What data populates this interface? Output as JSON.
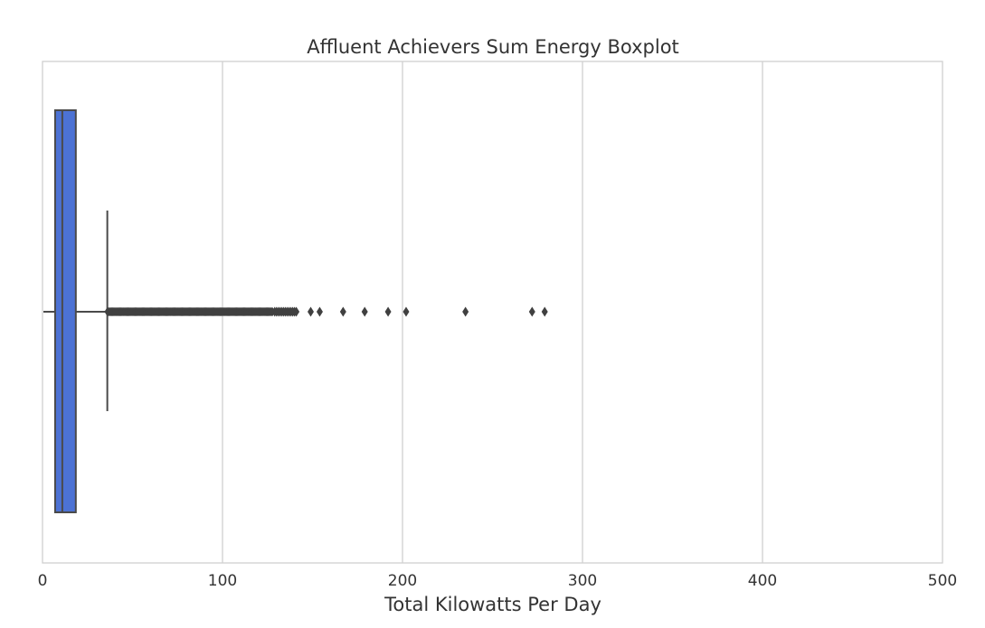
{
  "chart_data": {
    "type": "boxplot",
    "title": "Affluent Achievers Sum Energy Boxplot",
    "xlabel": "Total Kilowatts Per Day",
    "ylabel": "",
    "orientation": "horizontal",
    "xlim": [
      0,
      500
    ],
    "xticks": [
      0,
      100,
      200,
      300,
      400,
      500
    ],
    "xtick_labels": [
      "0",
      "100",
      "200",
      "300",
      "400",
      "500"
    ],
    "grid": "vertical",
    "box": {
      "min": 0.5,
      "q1": 7,
      "median": 11,
      "q3": 18.5,
      "whisker_high": 36,
      "color": "#4C72D4"
    },
    "outliers": {
      "dense_range": [
        36,
        128
      ],
      "sparse": [
        129,
        130,
        131,
        132,
        133,
        134,
        135,
        136,
        137,
        138,
        139,
        140,
        141,
        149,
        154,
        167,
        179,
        192,
        202,
        235,
        272,
        279
      ],
      "color": "#404040"
    }
  }
}
